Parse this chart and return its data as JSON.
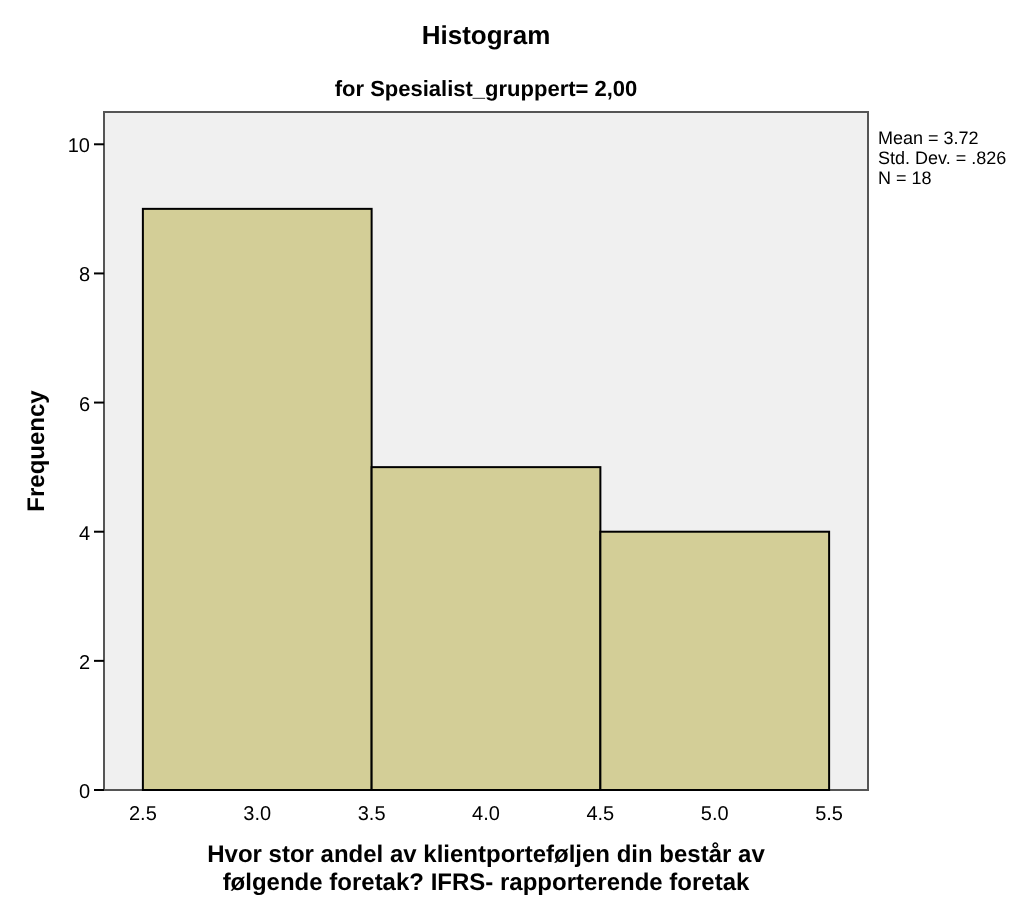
{
  "chart_data": {
    "type": "histogram",
    "title": "Histogram",
    "subtitle": "for Spesialist_gruppert= 2,00",
    "xlabel": "Hvor stor andel av klientporteføljen din består av følgende foretak? IFRS- rapporterende foretak",
    "ylabel": "Frequency",
    "bins": [
      2.5,
      3.5,
      4.5,
      5.5
    ],
    "values": [
      9,
      5,
      4
    ],
    "color": "#d3ce97",
    "xlim": [
      2.33,
      5.67
    ],
    "xticks": [
      {
        "value": 2.5,
        "label": "2.5"
      },
      {
        "value": 3,
        "label": "3.0"
      },
      {
        "value": 3.5,
        "label": "3.5"
      },
      {
        "value": 4,
        "label": "4.0"
      },
      {
        "value": 4.5,
        "label": "4.5"
      },
      {
        "value": 5,
        "label": "5.0"
      },
      {
        "value": 5.5,
        "label": "5.5"
      }
    ],
    "ylim": [
      0,
      10.5
    ],
    "yticks": [
      0,
      2,
      4,
      6,
      8,
      10
    ],
    "annotations": [
      "Mean = 3.72",
      "Std. Dev. = .826",
      "N = 18"
    ]
  }
}
